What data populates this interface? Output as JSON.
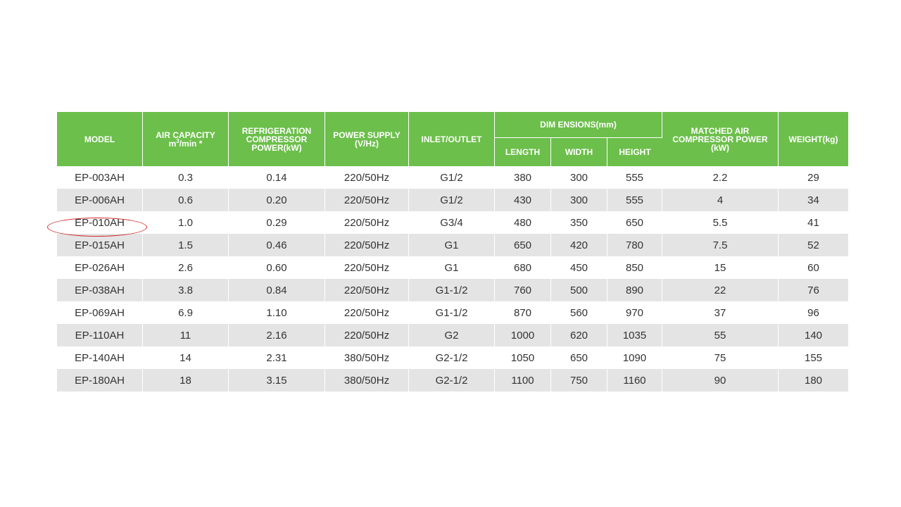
{
  "table": {
    "headers": {
      "model": "MODEL",
      "air_capacity": "AIR CAPACITY",
      "air_capacity_unit_pre": "m",
      "air_capacity_unit_sup": "3",
      "air_capacity_unit_post": "/min *",
      "refrigeration": "REFRIGERATION COMPRESSOR POWER(kW)",
      "power_supply": "POWER SUPPLY (V/Hz)",
      "inlet_outlet": "INLET/OUTLET",
      "dimensions": "DIM ENSIONS(mm)",
      "length": "LENGTH",
      "width": "WIDTH",
      "height": "HEIGHT",
      "matched": "MATCHED AIR COMPRESSOR POWER (kW)",
      "weight": "WEIGHT(kg)"
    },
    "rows": [
      [
        "EP-003AH",
        "0.3",
        "0.14",
        "220/50Hz",
        "G1/2",
        "380",
        "300",
        "555",
        "2.2",
        "29"
      ],
      [
        "EP-006AH",
        "0.6",
        "0.20",
        "220/50Hz",
        "G1/2",
        "430",
        "300",
        "555",
        "4",
        "34"
      ],
      [
        "EP-010AH",
        "1.0",
        "0.29",
        "220/50Hz",
        "G3/4",
        "480",
        "350",
        "650",
        "5.5",
        "41"
      ],
      [
        "EP-015AH",
        "1.5",
        "0.46",
        "220/50Hz",
        "G1",
        "650",
        "420",
        "780",
        "7.5",
        "52"
      ],
      [
        "EP-026AH",
        "2.6",
        "0.60",
        "220/50Hz",
        "G1",
        "680",
        "450",
        "850",
        "15",
        "60"
      ],
      [
        "EP-038AH",
        "3.8",
        "0.84",
        "220/50Hz",
        "G1-1/2",
        "760",
        "500",
        "890",
        "22",
        "76"
      ],
      [
        "EP-069AH",
        "6.9",
        "1.10",
        "220/50Hz",
        "G1-1/2",
        "870",
        "560",
        "970",
        "37",
        "96"
      ],
      [
        "EP-110AH",
        "11",
        "2.16",
        "220/50Hz",
        "G2",
        "1000",
        "620",
        "1035",
        "55",
        "140"
      ],
      [
        "EP-140AH",
        "14",
        "2.31",
        "380/50Hz",
        "G2-1/2",
        "1050",
        "650",
        "1090",
        "75",
        "155"
      ],
      [
        "EP-180AH",
        "18",
        "3.15",
        "380/50Hz",
        "G2-1/2",
        "1100",
        "750",
        "1160",
        "90",
        "180"
      ]
    ],
    "highlighted_model": "EP-010AH"
  },
  "colors": {
    "header_green": "#6cbf4b",
    "stripe_gray": "#e4e4e4",
    "highlight_red": "#cf2b2b"
  }
}
